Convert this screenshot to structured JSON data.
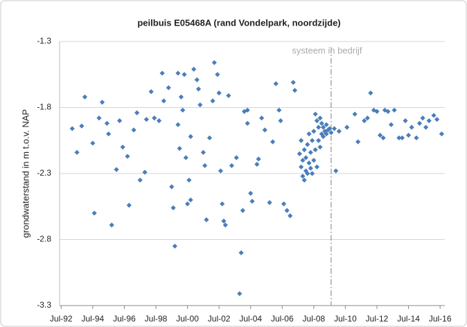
{
  "chart_data": {
    "type": "scatter",
    "title": "peilbuis E05468A (rand Vondelpark, noordzijde)",
    "y_label": "grondwaterstand in m t.o.v. NAP",
    "color": "#4a7ebb",
    "grid": true,
    "xlim": [
      1992.4,
      2016.8
    ],
    "ylim": [
      -3.3,
      -1.3
    ],
    "yticks": [
      -1.3,
      -1.8,
      -2.3,
      -2.8,
      -3.3
    ],
    "xticks": [
      {
        "value": 1992.5,
        "label": "Jul-92"
      },
      {
        "value": 1994.5,
        "label": "Jul-94"
      },
      {
        "value": 1996.5,
        "label": "Jul-96"
      },
      {
        "value": 1998.5,
        "label": "Jul-98"
      },
      {
        "value": 2000.5,
        "label": "Jul-00"
      },
      {
        "value": 2002.5,
        "label": "Jul-02"
      },
      {
        "value": 2004.5,
        "label": "Jul-04"
      },
      {
        "value": 2006.5,
        "label": "Jul-06"
      },
      {
        "value": 2008.5,
        "label": "Jul-08"
      },
      {
        "value": 2010.5,
        "label": "Jul-10"
      },
      {
        "value": 2012.5,
        "label": "Jul-12"
      },
      {
        "value": 2014.5,
        "label": "Jul-14"
      },
      {
        "value": 2016.5,
        "label": "Jul-16"
      }
    ],
    "annotations": [
      {
        "text": "systeem in bedrijf",
        "x": 2009.6
      }
    ],
    "x": [
      1993.2,
      1993.5,
      1993.8,
      1994.0,
      1994.5,
      1994.6,
      1994.9,
      1995.1,
      1995.4,
      1995.5,
      1995.7,
      1996.0,
      1996.2,
      1996.4,
      1996.7,
      1996.8,
      1997.1,
      1997.3,
      1997.5,
      1997.8,
      1997.9,
      1998.2,
      1998.4,
      1998.7,
      1998.9,
      1999.0,
      1999.3,
      1999.5,
      1999.6,
      1999.7,
      1999.9,
      1999.9,
      2000.0,
      2000.1,
      2000.2,
      2000.3,
      2000.4,
      2000.5,
      2000.6,
      2000.7,
      2000.7,
      2000.9,
      2001.1,
      2001.2,
      2001.3,
      2001.5,
      2001.6,
      2001.7,
      2001.9,
      2002.1,
      2002.2,
      2002.4,
      2002.5,
      2002.6,
      2002.7,
      2002.8,
      2002.9,
      2003.1,
      2003.3,
      2003.6,
      2003.8,
      2003.9,
      2004.0,
      2004.1,
      2004.3,
      2004.3,
      2004.5,
      2004.6,
      2004.9,
      2005.0,
      2005.2,
      2005.4,
      2005.7,
      2005.9,
      2006.1,
      2006.3,
      2006.4,
      2006.6,
      2006.8,
      2007.0,
      2007.2,
      2007.3,
      2007.6,
      2007.7,
      2007.7,
      2007.8,
      2007.8,
      2007.9,
      2007.9,
      2008.0,
      2008.0,
      2008.1,
      2008.1,
      2008.2,
      2008.2,
      2008.3,
      2008.3,
      2008.4,
      2008.4,
      2008.5,
      2008.5,
      2008.6,
      2008.6,
      2008.7,
      2008.7,
      2008.8,
      2008.8,
      2008.9,
      2008.9,
      2009.0,
      2009.0,
      2009.1,
      2009.1,
      2009.2,
      2009.3,
      2009.3,
      2009.4,
      2009.5,
      2009.6,
      2009.8,
      2009.9,
      2010.1,
      2010.6,
      2011.1,
      2011.3,
      2011.7,
      2011.9,
      2012.1,
      2012.3,
      2012.5,
      2012.7,
      2012.9,
      2013.0,
      2013.2,
      2013.4,
      2013.6,
      2013.9,
      2014.1,
      2014.3,
      2014.5,
      2014.7,
      2015.0,
      2015.2,
      2015.4,
      2015.6,
      2015.8,
      2016.1,
      2016.3,
      2016.6
    ],
    "values": [
      -1.96,
      -2.14,
      -1.94,
      -1.72,
      -2.07,
      -2.6,
      -1.88,
      -1.76,
      -1.92,
      -2.0,
      -2.69,
      -2.27,
      -1.9,
      -2.1,
      -2.17,
      -2.54,
      -1.97,
      -1.84,
      -2.35,
      -2.29,
      -1.89,
      -1.68,
      -1.88,
      -1.9,
      -1.54,
      -1.75,
      -1.65,
      -2.4,
      -2.56,
      -2.85,
      -1.54,
      -1.93,
      -2.11,
      -1.72,
      -1.82,
      -1.55,
      -2.18,
      -2.53,
      -2.35,
      -2.02,
      -2.5,
      -1.51,
      -1.59,
      -1.66,
      -1.78,
      -2.14,
      -2.24,
      -2.65,
      -2.03,
      -1.75,
      -1.46,
      -1.55,
      -1.69,
      -2.28,
      -2.53,
      -2.66,
      -2.69,
      -1.71,
      -2.24,
      -2.18,
      -3.21,
      -2.9,
      -2.58,
      -1.83,
      -1.92,
      -1.82,
      -2.45,
      -2.51,
      -2.23,
      -2.19,
      -1.88,
      -1.97,
      -2.52,
      -2.06,
      -1.62,
      -1.82,
      -1.9,
      -2.53,
      -2.58,
      -2.62,
      -1.61,
      -1.67,
      -2.15,
      -2.25,
      -2.05,
      -2.32,
      -2.2,
      -2.12,
      -2.35,
      -2.28,
      -2.18,
      -2.08,
      -2.3,
      -2.22,
      -2.0,
      -2.26,
      -2.14,
      -2.05,
      -2.3,
      -2.2,
      -1.98,
      -2.12,
      -1.85,
      -2.25,
      -1.9,
      -2.05,
      -1.95,
      -2.1,
      -1.88,
      -2.0,
      -1.92,
      -2.02,
      -1.95,
      -1.98,
      -2.0,
      -1.93,
      -1.97,
      -1.96,
      -1.99,
      -1.96,
      -2.28,
      -1.98,
      -1.95,
      -1.85,
      -2.06,
      -1.9,
      -1.88,
      -1.69,
      -1.82,
      -1.83,
      -2.01,
      -2.03,
      -1.82,
      -1.83,
      -1.93,
      -1.82,
      -2.03,
      -2.03,
      -1.9,
      -2.01,
      -1.95,
      -2.03,
      -1.92,
      -1.88,
      -1.95,
      -1.9,
      -1.86,
      -1.89,
      -2.0
    ]
  }
}
